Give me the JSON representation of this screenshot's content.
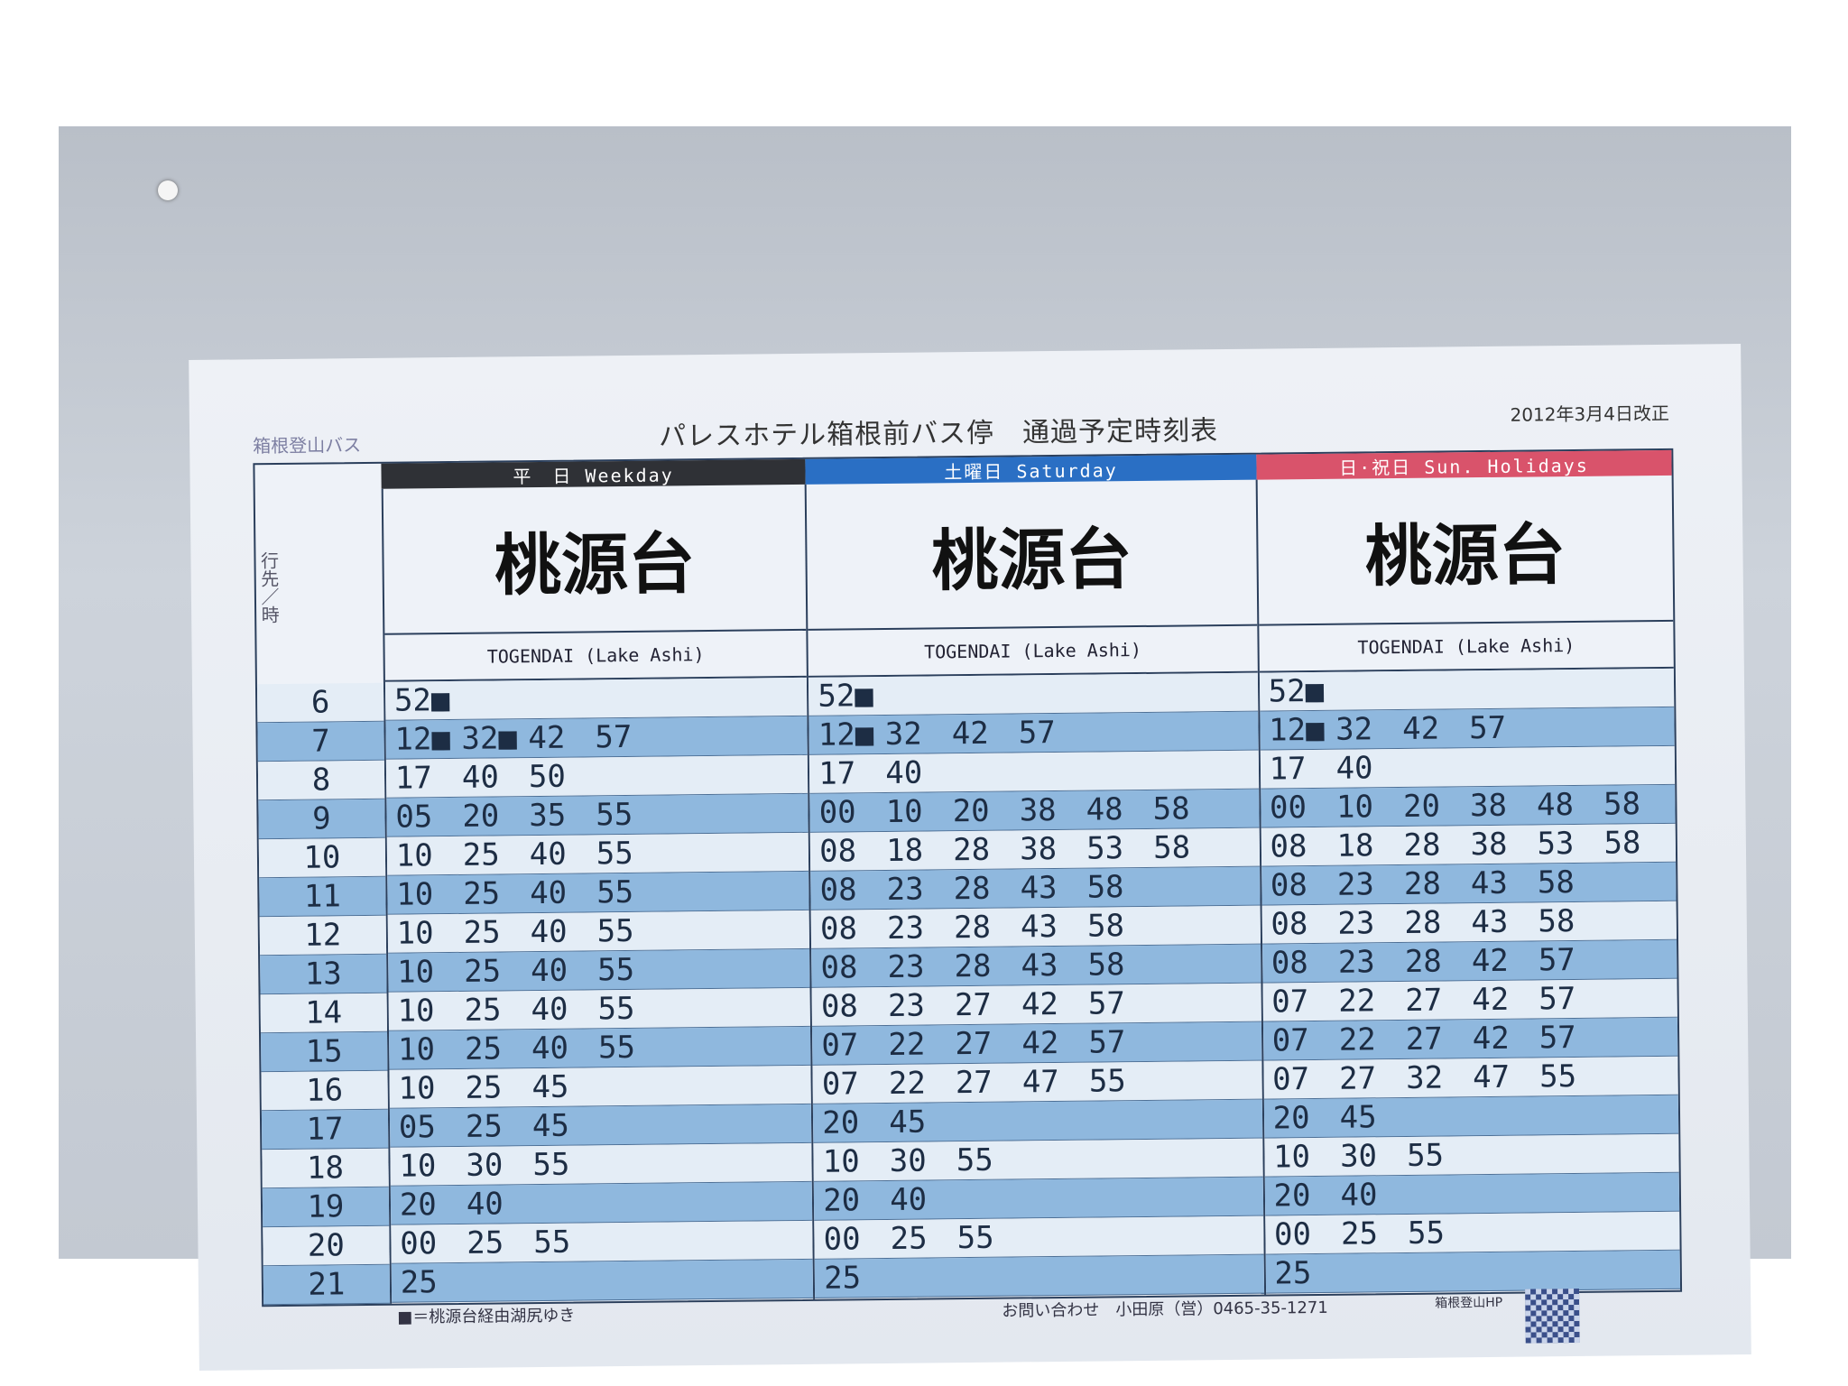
{
  "header": {
    "company": "箱根登山バス",
    "title": "パレスホテル箱根前バス停　通過予定時刻表",
    "revised": "2012年3月4日改正",
    "hour_column_label": "行先／時"
  },
  "colors": {
    "weekday": "#2f3136",
    "saturday": "#2a6fc4",
    "holiday": "#d9536b",
    "row_alt": "#8fb8de",
    "row_plain": "#e4edf6",
    "border": "#2b3f5c"
  },
  "hours": [
    "6",
    "7",
    "8",
    "9",
    "10",
    "11",
    "12",
    "13",
    "14",
    "15",
    "16",
    "17",
    "18",
    "19",
    "20",
    "21"
  ],
  "days": [
    {
      "label": "平　日  Weekday",
      "destination": "桃源台",
      "destination_en": "TOGENDAI (Lake Ashi)",
      "times": [
        [
          "52■"
        ],
        [
          "12■",
          "32■",
          "42",
          "57"
        ],
        [
          "17",
          "40",
          "50"
        ],
        [
          "05",
          "20",
          "35",
          "55"
        ],
        [
          "10",
          "25",
          "40",
          "55"
        ],
        [
          "10",
          "25",
          "40",
          "55"
        ],
        [
          "10",
          "25",
          "40",
          "55"
        ],
        [
          "10",
          "25",
          "40",
          "55"
        ],
        [
          "10",
          "25",
          "40",
          "55"
        ],
        [
          "10",
          "25",
          "40",
          "55"
        ],
        [
          "10",
          "25",
          "45"
        ],
        [
          "05",
          "25",
          "45"
        ],
        [
          "10",
          "30",
          "55"
        ],
        [
          "20",
          "40"
        ],
        [
          "00",
          "25",
          "55"
        ],
        [
          "25"
        ]
      ]
    },
    {
      "label": "土曜日  Saturday",
      "destination": "桃源台",
      "destination_en": "TOGENDAI (Lake Ashi)",
      "times": [
        [
          "52■"
        ],
        [
          "12■",
          "32",
          "42",
          "57"
        ],
        [
          "17",
          "40"
        ],
        [
          "00",
          "10",
          "20",
          "38",
          "48",
          "58"
        ],
        [
          "08",
          "18",
          "28",
          "38",
          "53",
          "58"
        ],
        [
          "08",
          "23",
          "28",
          "43",
          "58"
        ],
        [
          "08",
          "23",
          "28",
          "43",
          "58"
        ],
        [
          "08",
          "23",
          "28",
          "43",
          "58"
        ],
        [
          "08",
          "23",
          "27",
          "42",
          "57"
        ],
        [
          "07",
          "22",
          "27",
          "42",
          "57"
        ],
        [
          "07",
          "22",
          "27",
          "47",
          "55"
        ],
        [
          "20",
          "45"
        ],
        [
          "10",
          "30",
          "55"
        ],
        [
          "20",
          "40"
        ],
        [
          "00",
          "25",
          "55"
        ],
        [
          "25"
        ]
      ]
    },
    {
      "label": "日·祝日  Sun. Holidays",
      "destination": "桃源台",
      "destination_en": "TOGENDAI (Lake Ashi)",
      "times": [
        [
          "52■"
        ],
        [
          "12■",
          "32",
          "42",
          "57"
        ],
        [
          "17",
          "40"
        ],
        [
          "00",
          "10",
          "20",
          "38",
          "48",
          "58"
        ],
        [
          "08",
          "18",
          "28",
          "38",
          "53",
          "58"
        ],
        [
          "08",
          "23",
          "28",
          "43",
          "58"
        ],
        [
          "08",
          "23",
          "28",
          "43",
          "58"
        ],
        [
          "08",
          "23",
          "28",
          "42",
          "57"
        ],
        [
          "07",
          "22",
          "27",
          "42",
          "57"
        ],
        [
          "07",
          "22",
          "27",
          "42",
          "57"
        ],
        [
          "07",
          "27",
          "32",
          "47",
          "55"
        ],
        [
          "20",
          "45"
        ],
        [
          "10",
          "30",
          "55"
        ],
        [
          "20",
          "40"
        ],
        [
          "00",
          "25",
          "55"
        ],
        [
          "25"
        ]
      ]
    }
  ],
  "footer": {
    "note": "■＝桃源台経由湖尻ゆき",
    "contact": "お問い合わせ　小田原（営）0465-35-1271",
    "qr_label": "箱根登山HP"
  }
}
